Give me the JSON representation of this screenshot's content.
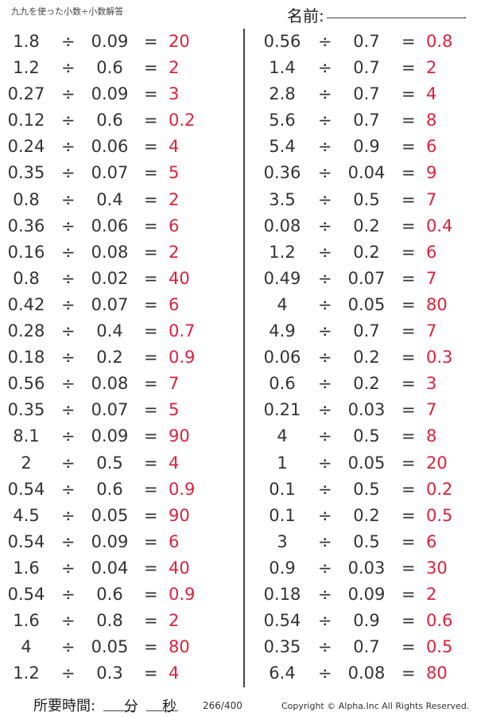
{
  "header": {
    "title": "九九を使った小数÷小数解答",
    "name_label": "名前:",
    "name_dot": "."
  },
  "operator": "÷",
  "equals": "=",
  "left": [
    {
      "a": "1.8",
      "b": "0.09",
      "ans": "20"
    },
    {
      "a": "1.2",
      "b": "0.6",
      "ans": "2"
    },
    {
      "a": "0.27",
      "b": "0.09",
      "ans": "3"
    },
    {
      "a": "0.12",
      "b": "0.6",
      "ans": "0.2"
    },
    {
      "a": "0.24",
      "b": "0.06",
      "ans": "4"
    },
    {
      "a": "0.35",
      "b": "0.07",
      "ans": "5"
    },
    {
      "a": "0.8",
      "b": "0.4",
      "ans": "2"
    },
    {
      "a": "0.36",
      "b": "0.06",
      "ans": "6"
    },
    {
      "a": "0.16",
      "b": "0.08",
      "ans": "2"
    },
    {
      "a": "0.8",
      "b": "0.02",
      "ans": "40"
    },
    {
      "a": "0.42",
      "b": "0.07",
      "ans": "6"
    },
    {
      "a": "0.28",
      "b": "0.4",
      "ans": "0.7"
    },
    {
      "a": "0.18",
      "b": "0.2",
      "ans": "0.9"
    },
    {
      "a": "0.56",
      "b": "0.08",
      "ans": "7"
    },
    {
      "a": "0.35",
      "b": "0.07",
      "ans": "5"
    },
    {
      "a": "8.1",
      "b": "0.09",
      "ans": "90"
    },
    {
      "a": "2",
      "b": "0.5",
      "ans": "4"
    },
    {
      "a": "0.54",
      "b": "0.6",
      "ans": "0.9"
    },
    {
      "a": "4.5",
      "b": "0.05",
      "ans": "90"
    },
    {
      "a": "0.54",
      "b": "0.09",
      "ans": "6"
    },
    {
      "a": "1.6",
      "b": "0.04",
      "ans": "40"
    },
    {
      "a": "0.54",
      "b": "0.6",
      "ans": "0.9"
    },
    {
      "a": "1.6",
      "b": "0.8",
      "ans": "2"
    },
    {
      "a": "4",
      "b": "0.05",
      "ans": "80"
    },
    {
      "a": "1.2",
      "b": "0.3",
      "ans": "4"
    }
  ],
  "right": [
    {
      "a": "0.56",
      "b": "0.7",
      "ans": "0.8"
    },
    {
      "a": "1.4",
      "b": "0.7",
      "ans": "2"
    },
    {
      "a": "2.8",
      "b": "0.7",
      "ans": "4"
    },
    {
      "a": "5.6",
      "b": "0.7",
      "ans": "8"
    },
    {
      "a": "5.4",
      "b": "0.9",
      "ans": "6"
    },
    {
      "a": "0.36",
      "b": "0.04",
      "ans": "9"
    },
    {
      "a": "3.5",
      "b": "0.5",
      "ans": "7"
    },
    {
      "a": "0.08",
      "b": "0.2",
      "ans": "0.4"
    },
    {
      "a": "1.2",
      "b": "0.2",
      "ans": "6"
    },
    {
      "a": "0.49",
      "b": "0.07",
      "ans": "7"
    },
    {
      "a": "4",
      "b": "0.05",
      "ans": "80"
    },
    {
      "a": "4.9",
      "b": "0.7",
      "ans": "7"
    },
    {
      "a": "0.06",
      "b": "0.2",
      "ans": "0.3"
    },
    {
      "a": "0.6",
      "b": "0.2",
      "ans": "3"
    },
    {
      "a": "0.21",
      "b": "0.03",
      "ans": "7"
    },
    {
      "a": "4",
      "b": "0.5",
      "ans": "8"
    },
    {
      "a": "1",
      "b": "0.05",
      "ans": "20"
    },
    {
      "a": "0.1",
      "b": "0.5",
      "ans": "0.2"
    },
    {
      "a": "0.1",
      "b": "0.2",
      "ans": "0.5"
    },
    {
      "a": "3",
      "b": "0.5",
      "ans": "6"
    },
    {
      "a": "0.9",
      "b": "0.03",
      "ans": "30"
    },
    {
      "a": "0.18",
      "b": "0.09",
      "ans": "2"
    },
    {
      "a": "0.54",
      "b": "0.9",
      "ans": "0.6"
    },
    {
      "a": "0.35",
      "b": "0.7",
      "ans": "0.5"
    },
    {
      "a": "6.4",
      "b": "0.08",
      "ans": "80"
    }
  ],
  "footer": {
    "time_label": "所要時間:",
    "minutes": "分",
    "seconds": "秒",
    "page": "266/400",
    "copyright": "Copyright © Alpha.Inc All Rights Reserved."
  },
  "colors": {
    "answer": "#e0203a",
    "text": "#333333"
  }
}
